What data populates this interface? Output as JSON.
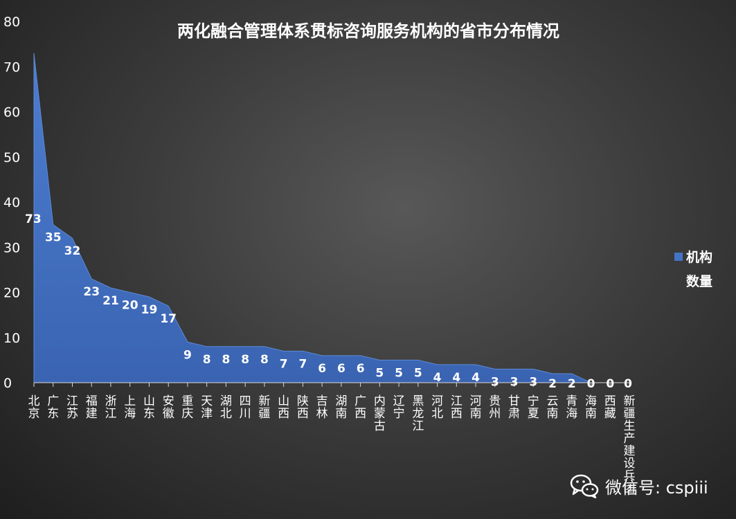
{
  "chart_data": {
    "type": "area",
    "title": "两化融合管理体系贯标咨询服务机构的省市分布情况",
    "categories": [
      "北京",
      "广东",
      "江苏",
      "福建",
      "浙江",
      "上海",
      "山东",
      "安徽",
      "重庆",
      "天津",
      "湖北",
      "四川",
      "新疆",
      "山西",
      "陕西",
      "吉林",
      "湖南",
      "广西",
      "内蒙古",
      "辽宁",
      "黑龙江",
      "河北",
      "江西",
      "河南",
      "贵州",
      "甘肃",
      "宁夏",
      "云南",
      "青海",
      "海南",
      "西藏",
      "新疆生产建设兵团"
    ],
    "series": [
      {
        "name": "机构数量",
        "values": [
          73,
          35,
          32,
          23,
          21,
          20,
          19,
          17,
          9,
          8,
          8,
          8,
          8,
          7,
          7,
          6,
          6,
          6,
          5,
          5,
          5,
          4,
          4,
          4,
          3,
          3,
          3,
          2,
          2,
          0,
          0,
          0
        ]
      }
    ],
    "ylim": [
      0,
      80
    ],
    "yticks": [
      0,
      10,
      20,
      30,
      40,
      50,
      60,
      70,
      80
    ],
    "legend_position": "right",
    "series_color": "#4472c4"
  },
  "watermark": {
    "text": "微信号: cspiii",
    "icon": "wechat-icon"
  }
}
